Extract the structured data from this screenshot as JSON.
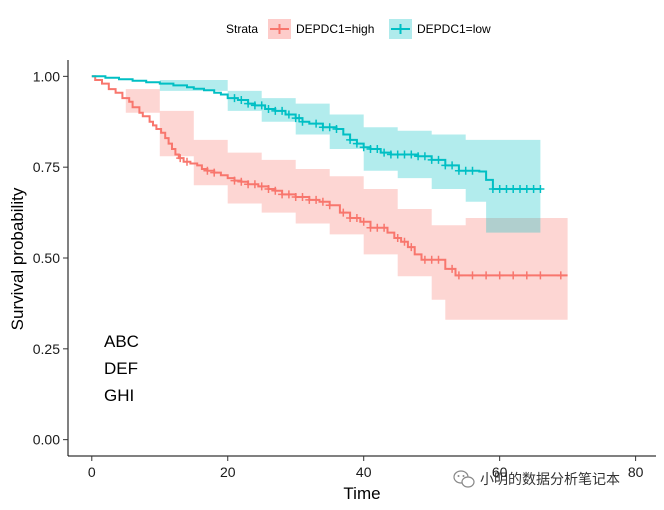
{
  "chart_data": {
    "type": "line",
    "subtype": "kaplan-meier survival curve",
    "title": "",
    "xlabel": "Time",
    "ylabel": "Survival probability",
    "xlim": [
      -3.5,
      83
    ],
    "ylim": [
      -0.045,
      1.045
    ],
    "xticks": [
      0,
      20,
      40,
      60,
      80
    ],
    "yticks": [
      0.0,
      0.25,
      0.5,
      0.75,
      1.0
    ],
    "xtick_labels": [
      "0",
      "20",
      "40",
      "60",
      "80"
    ],
    "ytick_labels": [
      "0.00",
      "0.25",
      "0.50",
      "0.75",
      "1.00"
    ],
    "grid": false,
    "legend": {
      "title": "Strata",
      "placement": "top"
    },
    "annotations": [
      "ABC",
      "DEF",
      "GHI"
    ],
    "series": [
      {
        "name": "DEPDC1=high",
        "color": "#F8766D",
        "band_color": "#FDCCCA",
        "steps": [
          [
            0,
            1.0
          ],
          [
            0.5,
            0.99
          ],
          [
            1.5,
            0.98
          ],
          [
            2.5,
            0.965
          ],
          [
            3.5,
            0.955
          ],
          [
            4.5,
            0.94
          ],
          [
            5.5,
            0.93
          ],
          [
            6,
            0.915
          ],
          [
            7,
            0.9
          ],
          [
            7.5,
            0.89
          ],
          [
            8.5,
            0.875
          ],
          [
            9,
            0.865
          ],
          [
            9.5,
            0.855
          ],
          [
            10.2,
            0.845
          ],
          [
            10.8,
            0.83
          ],
          [
            11.3,
            0.815
          ],
          [
            11.8,
            0.8
          ],
          [
            12.3,
            0.785
          ],
          [
            12.8,
            0.775
          ],
          [
            13.5,
            0.765
          ],
          [
            14.5,
            0.76
          ],
          [
            15.5,
            0.755
          ],
          [
            16.2,
            0.745
          ],
          [
            17,
            0.74
          ],
          [
            18,
            0.735
          ],
          [
            19,
            0.728
          ],
          [
            20,
            0.72
          ],
          [
            21,
            0.713
          ],
          [
            22,
            0.71
          ],
          [
            23,
            0.703
          ],
          [
            24.5,
            0.697
          ],
          [
            26,
            0.69
          ],
          [
            27,
            0.685
          ],
          [
            28,
            0.675
          ],
          [
            30,
            0.668
          ],
          [
            32,
            0.66
          ],
          [
            33.5,
            0.655
          ],
          [
            35,
            0.645
          ],
          [
            36.5,
            0.625
          ],
          [
            38,
            0.61
          ],
          [
            39.5,
            0.6
          ],
          [
            41,
            0.583
          ],
          [
            43.5,
            0.57
          ],
          [
            44.5,
            0.555
          ],
          [
            45.5,
            0.545
          ],
          [
            46.5,
            0.53
          ],
          [
            47.5,
            0.51
          ],
          [
            48.5,
            0.495
          ],
          [
            52,
            0.47
          ],
          [
            53.5,
            0.452
          ],
          [
            55,
            0.452
          ],
          [
            70,
            0.452
          ]
        ],
        "ci_upper": [
          [
            0,
            1.0
          ],
          [
            5,
            0.965
          ],
          [
            10,
            0.905
          ],
          [
            15,
            0.825
          ],
          [
            20,
            0.79
          ],
          [
            25,
            0.77
          ],
          [
            30,
            0.745
          ],
          [
            35,
            0.725
          ],
          [
            40,
            0.69
          ],
          [
            45,
            0.635
          ],
          [
            50,
            0.59
          ],
          [
            55,
            0.61
          ],
          [
            70,
            0.62
          ]
        ],
        "ci_lower": [
          [
            0,
            1.0
          ],
          [
            5,
            0.9
          ],
          [
            10,
            0.78
          ],
          [
            15,
            0.7
          ],
          [
            20,
            0.65
          ],
          [
            25,
            0.625
          ],
          [
            30,
            0.595
          ],
          [
            35,
            0.565
          ],
          [
            40,
            0.51
          ],
          [
            45,
            0.45
          ],
          [
            50,
            0.385
          ],
          [
            52,
            0.33
          ],
          [
            70,
            0.33
          ]
        ],
        "censor_times": [
          13,
          14,
          17,
          18,
          21,
          22,
          23,
          24,
          25,
          26,
          27,
          28,
          29,
          30,
          31,
          32,
          33,
          34,
          35,
          37,
          38,
          39,
          40,
          41,
          42,
          43,
          45,
          46,
          47,
          49,
          50,
          51,
          53,
          54,
          56,
          58,
          60,
          62,
          64,
          66,
          69
        ]
      },
      {
        "name": "DEPDC1=low",
        "color": "#00BFC4",
        "band_color": "#B0EBEC",
        "steps": [
          [
            0,
            1.0
          ],
          [
            2,
            0.996
          ],
          [
            4,
            0.992
          ],
          [
            6,
            0.988
          ],
          [
            8,
            0.984
          ],
          [
            10,
            0.98
          ],
          [
            12,
            0.975
          ],
          [
            14,
            0.97
          ],
          [
            15,
            0.966
          ],
          [
            16.5,
            0.962
          ],
          [
            18,
            0.955
          ],
          [
            19,
            0.95
          ],
          [
            20,
            0.94
          ],
          [
            21.5,
            0.935
          ],
          [
            23,
            0.925
          ],
          [
            24,
            0.92
          ],
          [
            25.5,
            0.91
          ],
          [
            27,
            0.905
          ],
          [
            28.5,
            0.895
          ],
          [
            30,
            0.885
          ],
          [
            31,
            0.875
          ],
          [
            32,
            0.87
          ],
          [
            34,
            0.86
          ],
          [
            36,
            0.855
          ],
          [
            37,
            0.84
          ],
          [
            38,
            0.825
          ],
          [
            39,
            0.815
          ],
          [
            40,
            0.805
          ],
          [
            41,
            0.8
          ],
          [
            42.5,
            0.79
          ],
          [
            44,
            0.785
          ],
          [
            46,
            0.785
          ],
          [
            48,
            0.78
          ],
          [
            50,
            0.77
          ],
          [
            52,
            0.755
          ],
          [
            54,
            0.74
          ],
          [
            57,
            0.738
          ],
          [
            58,
            0.715
          ],
          [
            59,
            0.69
          ],
          [
            66,
            0.69
          ]
        ],
        "ci_upper": [
          [
            0,
            1.0
          ],
          [
            10,
            0.99
          ],
          [
            20,
            0.96
          ],
          [
            25,
            0.94
          ],
          [
            30,
            0.925
          ],
          [
            35,
            0.895
          ],
          [
            40,
            0.86
          ],
          [
            45,
            0.85
          ],
          [
            50,
            0.84
          ],
          [
            55,
            0.825
          ],
          [
            66,
            0.835
          ]
        ],
        "ci_lower": [
          [
            0,
            1.0
          ],
          [
            10,
            0.96
          ],
          [
            20,
            0.905
          ],
          [
            25,
            0.875
          ],
          [
            30,
            0.84
          ],
          [
            35,
            0.8
          ],
          [
            40,
            0.74
          ],
          [
            45,
            0.72
          ],
          [
            50,
            0.69
          ],
          [
            55,
            0.655
          ],
          [
            58,
            0.57
          ],
          [
            66,
            0.57
          ]
        ],
        "censor_times": [
          21,
          22,
          23,
          24,
          25,
          26,
          27,
          28,
          29,
          30,
          30.5,
          31,
          33,
          34,
          35,
          36,
          38,
          39,
          40,
          41,
          42,
          43,
          44,
          45,
          46,
          47,
          48,
          49,
          50,
          51,
          52,
          53,
          54,
          55,
          56,
          59,
          60,
          61,
          62,
          63,
          64,
          65,
          66
        ]
      }
    ]
  },
  "watermark": {
    "text": "小明的数据分析笔记本",
    "icon": "wechat-icon"
  }
}
